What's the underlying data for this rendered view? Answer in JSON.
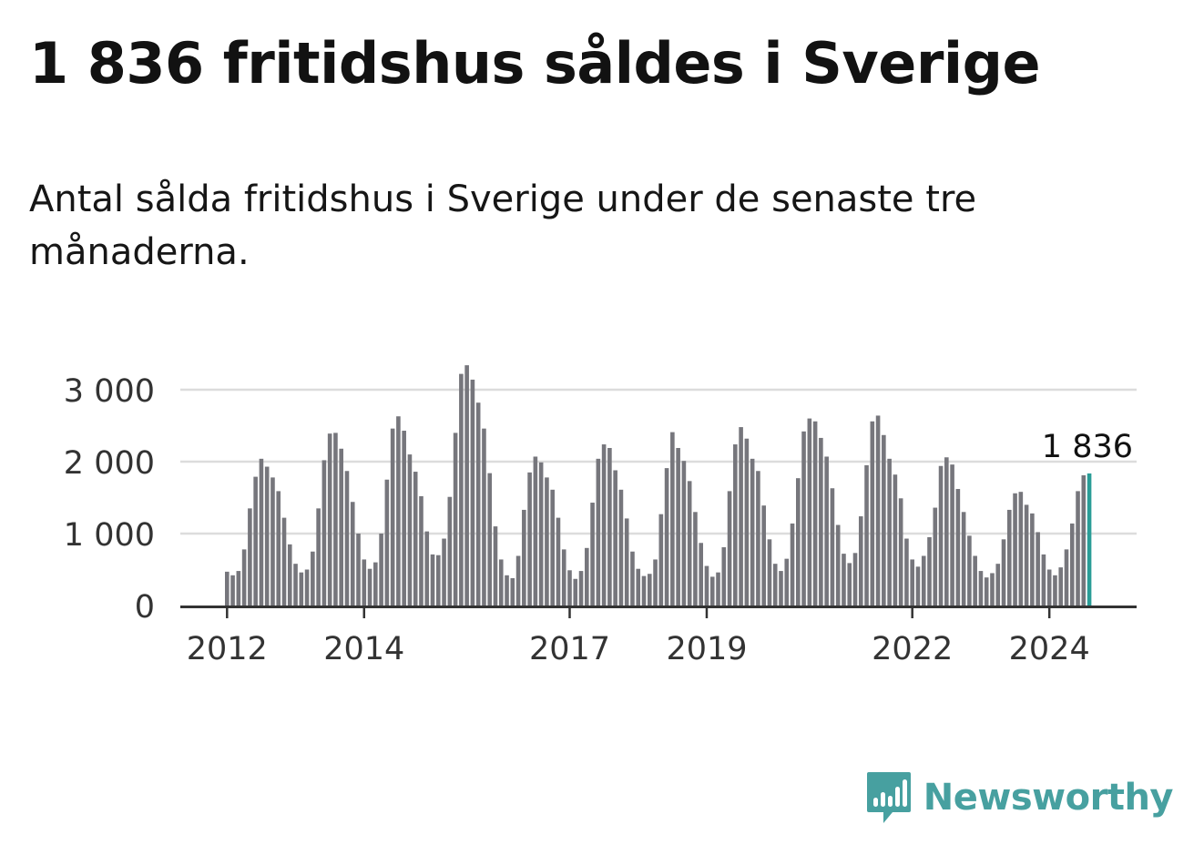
{
  "title": "1 836 fritidshus såldes i Sverige",
  "subtitle": "Antal sålda fritidshus i Sverige under de senaste tre månaderna.",
  "brand": {
    "name": "Newsworthy",
    "icon": "newsworthy-logo-icon",
    "color": "#47a0a0"
  },
  "chart_data": {
    "type": "bar",
    "title": "",
    "xlabel": "",
    "ylabel": "",
    "ylim": [
      0,
      3300
    ],
    "yticks": [
      0,
      1000,
      2000,
      3000
    ],
    "ytick_labels": [
      "0",
      "1 000",
      "2 000",
      "3 000"
    ],
    "xticks": [
      {
        "label": "2012",
        "index": 0
      },
      {
        "label": "2014",
        "index": 24
      },
      {
        "label": "2017",
        "index": 60
      },
      {
        "label": "2019",
        "index": 84
      },
      {
        "label": "2022",
        "index": 120
      },
      {
        "label": "2024",
        "index": 144
      }
    ],
    "grid": true,
    "bar_color": "#76767c",
    "highlight_color": "#2a9d97",
    "highlight_label": "1 836",
    "start_month": "2012-01",
    "values": [
      470,
      420,
      480,
      780,
      1350,
      1790,
      2040,
      1930,
      1780,
      1590,
      1220,
      850,
      580,
      460,
      500,
      750,
      1350,
      2020,
      2390,
      2400,
      2180,
      1870,
      1440,
      1000,
      640,
      510,
      600,
      1000,
      1750,
      2460,
      2630,
      2430,
      2100,
      1860,
      1520,
      1030,
      710,
      700,
      930,
      1510,
      2400,
      3220,
      3340,
      3140,
      2820,
      2460,
      1840,
      1100,
      640,
      420,
      380,
      690,
      1330,
      1850,
      2070,
      1990,
      1780,
      1610,
      1220,
      780,
      490,
      370,
      480,
      800,
      1430,
      2040,
      2240,
      2190,
      1880,
      1610,
      1210,
      750,
      510,
      410,
      440,
      640,
      1270,
      1910,
      2410,
      2190,
      2010,
      1730,
      1300,
      870,
      550,
      400,
      460,
      810,
      1590,
      2240,
      2480,
      2320,
      2040,
      1870,
      1390,
      920,
      580,
      480,
      650,
      1140,
      1770,
      2420,
      2600,
      2560,
      2330,
      2070,
      1630,
      1120,
      720,
      590,
      730,
      1240,
      1950,
      2560,
      2640,
      2370,
      2040,
      1820,
      1490,
      930,
      640,
      540,
      690,
      950,
      1360,
      1940,
      2060,
      1960,
      1620,
      1300,
      970,
      690,
      480,
      390,
      450,
      580,
      920,
      1330,
      1560,
      1580,
      1400,
      1280,
      1020,
      710,
      500,
      420,
      530,
      780,
      1140,
      1590,
      1810,
      1836
    ]
  }
}
